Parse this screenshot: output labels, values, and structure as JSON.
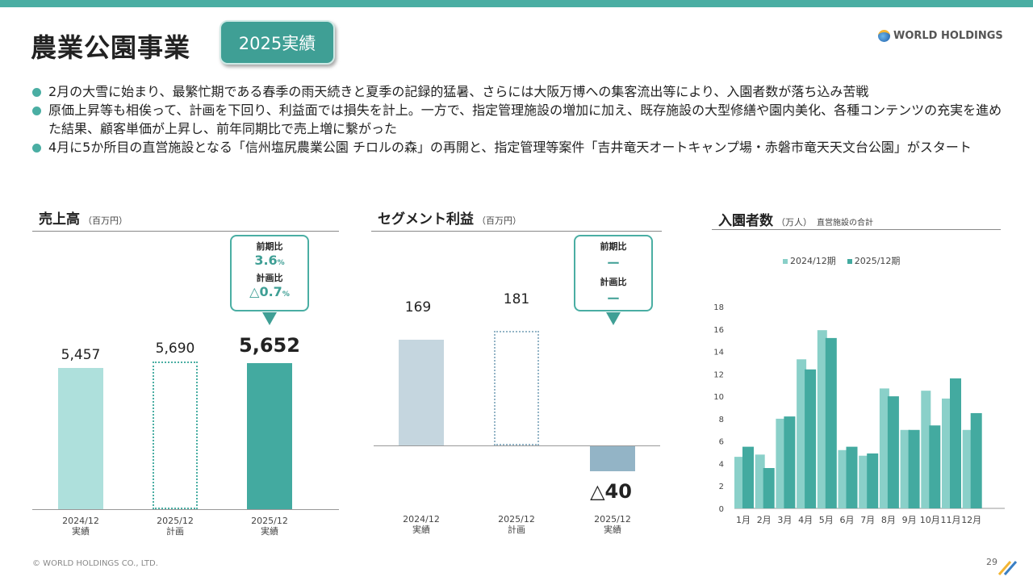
{
  "header": {
    "title": "農業公園事業",
    "badge": "2025実績",
    "logo": "WORLD HOLDINGS"
  },
  "bullets": [
    "2月の大雪に始まり、最繁忙期である春季の雨天続きと夏季の記録的猛暑、さらには大阪万博への集客流出等により、入園者数が落ち込み苦戦",
    "原価上昇等も相俟って、計画を下回り、利益面では損失を計上。一方で、指定管理施設の増加に加え、既存施設の大型修繕や園内美化、各種コンテンツの充実を進めた結果、顧客単価が上昇し、前年同期比で売上増に繋がった",
    "4月に5か所目の直営施設となる「信州塩尻農業公園 チロルの森」の再開と、指定管理等案件「吉井竜天オートキャンプ場・赤磐市竜天天文台公園」がスタート"
  ],
  "footer": {
    "copyright": "© WORLD HOLDINGS CO., LTD.",
    "page": "29"
  },
  "colors": {
    "accent": "#4aaea3",
    "light_bar": "#aee0dc",
    "dark_bar": "#43aaa0",
    "profit_bar": "#c5d6df",
    "loss_bar": "#93b4c6"
  },
  "chart_data": [
    {
      "type": "bar",
      "title": "売上高",
      "unit": "（百万円）",
      "categories": [
        [
          "2024/12",
          "実績"
        ],
        [
          "2025/12",
          "計画"
        ],
        [
          "2025/12",
          "実績"
        ]
      ],
      "values": [
        5457,
        5690,
        5652
      ],
      "labels": [
        "5,457",
        "5,690",
        "5,652"
      ],
      "callout": {
        "yoy_label": "前期比",
        "yoy": "3.6",
        "yoy_unit": "%",
        "plan_label": "計画比",
        "plan": "△0.7",
        "plan_unit": "%"
      }
    },
    {
      "type": "bar",
      "title": "セグメント利益",
      "unit": "（百万円）",
      "categories": [
        [
          "2024/12",
          "実績"
        ],
        [
          "2025/12",
          "計画"
        ],
        [
          "2025/12",
          "実績"
        ]
      ],
      "values": [
        169,
        181,
        -40
      ],
      "labels": [
        "169",
        "181",
        "△40"
      ],
      "callout": {
        "yoy_label": "前期比",
        "yoy": "ー",
        "plan_label": "計画比",
        "plan": "ー"
      }
    },
    {
      "type": "bar",
      "title": "入園者数",
      "unit": "（万人）",
      "note": "直営施設の合計",
      "ylim": [
        0,
        18
      ],
      "yticks": [
        0,
        2,
        4,
        6,
        8,
        10,
        12,
        14,
        16,
        18
      ],
      "categories": [
        "1月",
        "2月",
        "3月",
        "4月",
        "5月",
        "6月",
        "7月",
        "8月",
        "9月",
        "10月",
        "11月",
        "12月"
      ],
      "series": [
        {
          "name": "2024/12期",
          "values": [
            4.6,
            4.8,
            8.0,
            13.3,
            15.9,
            5.2,
            4.7,
            10.7,
            7.0,
            10.5,
            9.8,
            7.0
          ]
        },
        {
          "name": "2025/12期",
          "values": [
            5.5,
            3.6,
            8.2,
            12.4,
            15.2,
            5.5,
            4.9,
            10.0,
            7.0,
            7.4,
            11.6,
            8.5
          ]
        }
      ],
      "legend": "top"
    }
  ]
}
